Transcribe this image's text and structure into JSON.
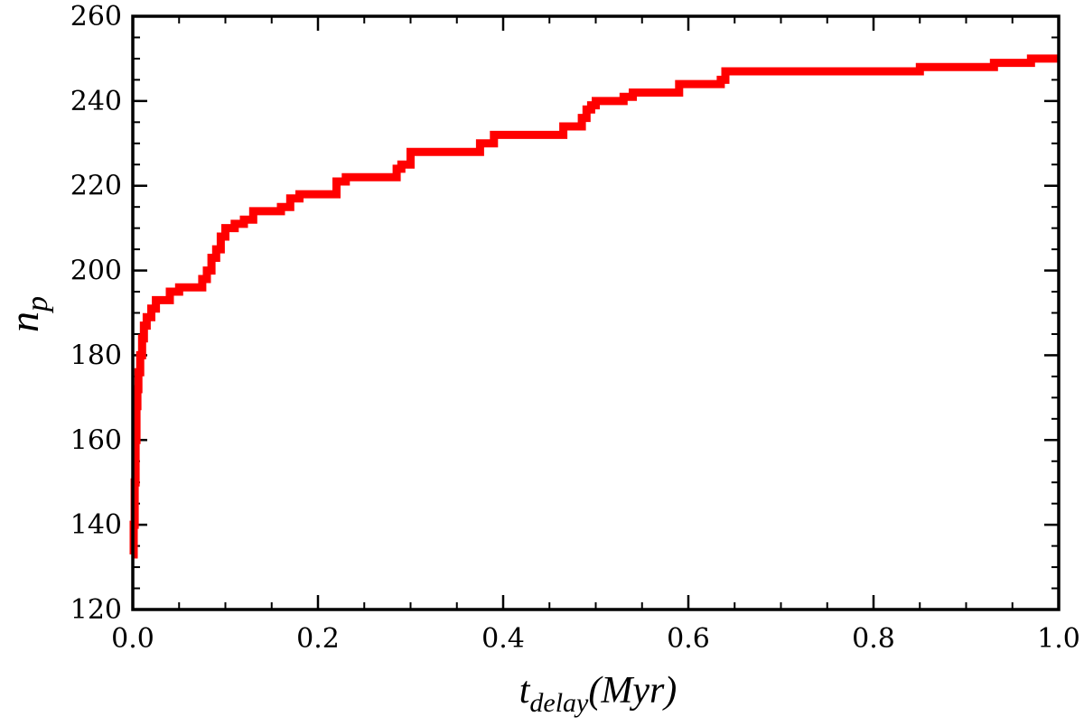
{
  "chart_data": {
    "type": "line",
    "xlabel": {
      "main": "t",
      "sub": "delay",
      "rest": "(Myr)"
    },
    "ylabel": {
      "main": "n",
      "sub": "p"
    },
    "xlim": [
      0.0,
      1.0
    ],
    "ylim": [
      120,
      260
    ],
    "xticks": [
      0.0,
      0.2,
      0.4,
      0.6,
      0.8,
      1.0
    ],
    "xtick_labels": [
      "0.0",
      "0.2",
      "0.4",
      "0.6",
      "0.8",
      "1.0"
    ],
    "yticks": [
      120,
      140,
      160,
      180,
      200,
      220,
      240,
      260
    ],
    "ytick_labels": [
      "120",
      "140",
      "160",
      "180",
      "200",
      "220",
      "240",
      "260"
    ],
    "x_minor_step": 0.05,
    "y_minor_step": 5,
    "grid": false,
    "line_color": "#ff0000",
    "series": [
      {
        "step": true,
        "x": [
          0.0,
          0.001,
          0.002,
          0.003,
          0.004,
          0.005,
          0.006,
          0.008,
          0.01,
          0.012,
          0.015,
          0.02,
          0.025,
          0.03,
          0.04,
          0.05,
          0.07,
          0.075,
          0.08,
          0.085,
          0.09,
          0.095,
          0.1,
          0.11,
          0.12,
          0.13,
          0.15,
          0.16,
          0.17,
          0.18,
          0.215,
          0.22,
          0.23,
          0.28,
          0.285,
          0.29,
          0.3,
          0.31,
          0.37,
          0.375,
          0.38,
          0.39,
          0.46,
          0.465,
          0.475,
          0.485,
          0.49,
          0.495,
          0.5,
          0.52,
          0.53,
          0.54,
          0.55,
          0.56,
          0.585,
          0.59,
          0.6,
          0.63,
          0.635,
          0.64,
          0.65,
          0.7,
          0.84,
          0.85,
          0.92,
          0.93,
          0.965,
          0.97,
          1.0
        ],
        "y": [
          133,
          140,
          150,
          160,
          168,
          172,
          176,
          180,
          184,
          187,
          189,
          191,
          193,
          193,
          195,
          196,
          196,
          198,
          200,
          203,
          205,
          208,
          210,
          211,
          212,
          214,
          214,
          215,
          217,
          218,
          218,
          221,
          222,
          222,
          224,
          225,
          228,
          228,
          228,
          230,
          230,
          232,
          232,
          234,
          234,
          236,
          238,
          239,
          240,
          240,
          241,
          242,
          242,
          242,
          242,
          244,
          244,
          244,
          245,
          247,
          247,
          247,
          247,
          248,
          248,
          249,
          249,
          250,
          250
        ]
      }
    ]
  }
}
